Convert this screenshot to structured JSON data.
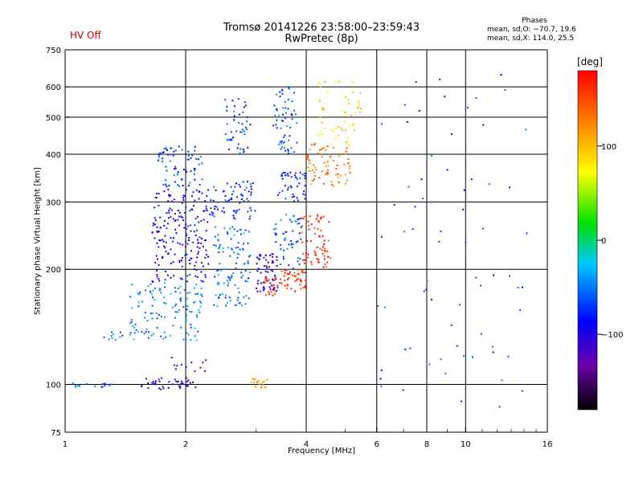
{
  "header": {
    "hv_status": "HV Off",
    "hv_color": "#cc0000",
    "title_line1": "Tromsø 20141226 23:58:00–23:59:43",
    "title_line2": "RwPretec (8p)",
    "phase_heading": "Phases",
    "phase_o": "mean, sd,O: −70.7, 19.6",
    "phase_x": "mean, sd,X: 114.0, 25.5"
  },
  "colorbar": {
    "unit": "[deg]",
    "tick_labels": [
      "100",
      "0",
      "−100"
    ],
    "tick_values": [
      100,
      0,
      -100
    ],
    "range": [
      -180,
      180
    ],
    "colormap": "rainbow: black (low) - purple - blue - cyan - green - yellow - orange - red (high)"
  },
  "chart_data": {
    "type": "scatter",
    "xlabel": "Frequency [MHz]",
    "ylabel": "Stationary phase Virtual Height [km]",
    "xscale": "log",
    "yscale": "log",
    "xlim": [
      1,
      16
    ],
    "ylim": [
      75,
      750
    ],
    "x_ticks": [
      1,
      2,
      4,
      6,
      8,
      10,
      16
    ],
    "x_gridlines": [
      2,
      4,
      6,
      8,
      10
    ],
    "y_ticks": [
      75,
      100,
      200,
      300,
      400,
      500,
      600,
      750
    ],
    "y_gridlines": [
      100,
      200,
      300,
      400,
      500,
      600
    ],
    "grid": true,
    "color_meaning": "phase [deg]",
    "clusters": [
      {
        "x_range": [
          1.0,
          1.3
        ],
        "y_range": [
          98,
          101
        ],
        "phase": -60,
        "count": 14
      },
      {
        "x_range": [
          1.25,
          1.4
        ],
        "y_range": [
          130,
          140
        ],
        "phase": -50,
        "count": 10
      },
      {
        "x_range": [
          1.55,
          2.15
        ],
        "y_range": [
          97,
          104
        ],
        "phase": -110,
        "count": 40
      },
      {
        "x_range": [
          1.7,
          2.25
        ],
        "y_range": [
          108,
          118
        ],
        "phase": -120,
        "count": 12
      },
      {
        "x_range": [
          1.45,
          2.2
        ],
        "y_range": [
          130,
          185
        ],
        "phase": -45,
        "count": 130
      },
      {
        "x_range": [
          1.65,
          2.3
        ],
        "y_range": [
          185,
          330
        ],
        "phase": -95,
        "count": 200
      },
      {
        "x_range": [
          1.7,
          2.2
        ],
        "y_range": [
          330,
          420
        ],
        "phase": -70,
        "count": 70
      },
      {
        "x_range": [
          2.35,
          2.9
        ],
        "y_range": [
          160,
          260
        ],
        "phase": -50,
        "count": 110
      },
      {
        "x_range": [
          2.3,
          3.0
        ],
        "y_range": [
          270,
          340
        ],
        "phase": -75,
        "count": 70
      },
      {
        "x_range": [
          2.5,
          2.9
        ],
        "y_range": [
          400,
          560
        ],
        "phase": -65,
        "count": 45
      },
      {
        "x_range": [
          3.0,
          3.4
        ],
        "y_range": [
          175,
          220
        ],
        "phase": -110,
        "count": 60
      },
      {
        "x_range": [
          3.15,
          3.4
        ],
        "y_range": [
          170,
          190
        ],
        "phase": 150,
        "count": 20
      },
      {
        "x_range": [
          3.4,
          4.0
        ],
        "y_range": [
          175,
          200
        ],
        "phase": 160,
        "count": 50
      },
      {
        "x_range": [
          3.3,
          3.9
        ],
        "y_range": [
          200,
          280
        ],
        "phase": -60,
        "count": 50
      },
      {
        "x_range": [
          3.4,
          4.0
        ],
        "y_range": [
          300,
          360
        ],
        "phase": -80,
        "count": 45
      },
      {
        "x_range": [
          3.3,
          3.8
        ],
        "y_range": [
          400,
          600
        ],
        "phase": -60,
        "count": 60
      },
      {
        "x_range": [
          3.9,
          4.6
        ],
        "y_range": [
          200,
          280
        ],
        "phase": 160,
        "count": 70
      },
      {
        "x_range": [
          4.0,
          5.2
        ],
        "y_range": [
          330,
          430
        ],
        "phase": 130,
        "count": 70
      },
      {
        "x_range": [
          4.2,
          5.5
        ],
        "y_range": [
          420,
          620
        ],
        "phase": 90,
        "count": 50
      },
      {
        "x_range": [
          2.9,
          3.2
        ],
        "y_range": [
          98,
          104
        ],
        "phase": 110,
        "count": 18
      },
      {
        "x_range": [
          5.9,
          14.5
        ],
        "y_range": [
          85,
          650
        ],
        "phase": -70,
        "count": 70
      }
    ]
  }
}
